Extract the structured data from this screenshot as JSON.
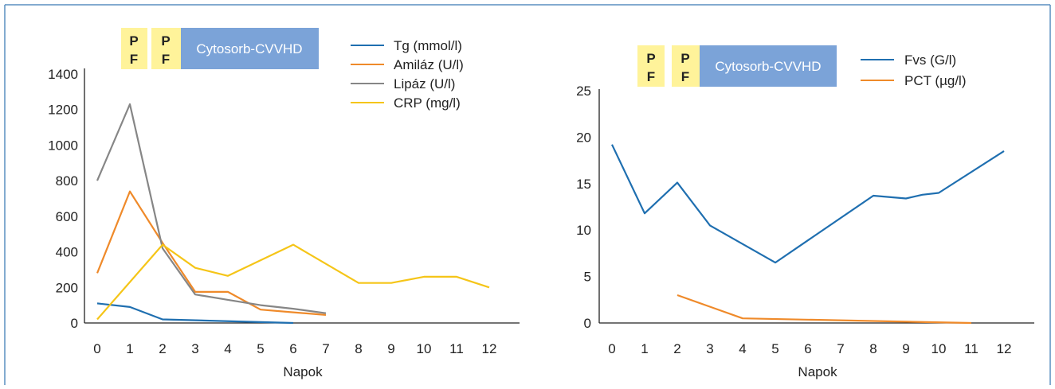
{
  "chart_data": [
    {
      "type": "line",
      "title": "",
      "xlabel": "Napok",
      "ylabel": "",
      "x_ticks": [
        "0",
        "1",
        "2",
        "3",
        "4",
        "5",
        "6",
        "7",
        "8",
        "9",
        "10",
        "11",
        "12"
      ],
      "y_ticks": [
        "0",
        "200",
        "400",
        "600",
        "800",
        "1000",
        "1200",
        "1400"
      ],
      "xlim": [
        0,
        12
      ],
      "ylim": [
        0,
        1400
      ],
      "legend_position": "top-right",
      "treatment_labels": {
        "pf1_top": "P",
        "pf1_bottom": "F",
        "pf2_top": "P",
        "pf2_bottom": "F",
        "cytosorb": "Cytosorb-CVVHD"
      },
      "series": [
        {
          "name": "Tg (mmol/l)",
          "color": "#1f6fb0",
          "x": [
            0,
            1,
            2,
            6
          ],
          "y": [
            110,
            90,
            20,
            0
          ]
        },
        {
          "name": "Amiláz (U/l)",
          "color": "#ef8a2a",
          "x": [
            0,
            1,
            2,
            3,
            4,
            5,
            6,
            7
          ],
          "y": [
            280,
            740,
            450,
            175,
            175,
            75,
            60,
            45
          ]
        },
        {
          "name": "Lipáz (U/l)",
          "color": "#868686",
          "x": [
            0,
            1,
            2,
            3,
            4,
            5,
            6,
            7
          ],
          "y": [
            800,
            1230,
            420,
            160,
            130,
            100,
            80,
            55
          ]
        },
        {
          "name": "CRP (mg/l)",
          "color": "#f5c518",
          "x": [
            0,
            2,
            3,
            4,
            6,
            8,
            9,
            10,
            11,
            12
          ],
          "y": [
            20,
            440,
            310,
            265,
            440,
            225,
            225,
            260,
            260,
            200
          ]
        }
      ]
    },
    {
      "type": "line",
      "title": "",
      "xlabel": "Napok",
      "ylabel": "",
      "x_ticks": [
        "0",
        "1",
        "2",
        "3",
        "4",
        "5",
        "6",
        "7",
        "8",
        "9",
        "10",
        "11",
        "12"
      ],
      "y_ticks": [
        "0",
        "5",
        "10",
        "15",
        "20",
        "25"
      ],
      "xlim": [
        0,
        12
      ],
      "ylim": [
        0,
        25
      ],
      "legend_position": "top-right",
      "treatment_labels": {
        "pf1_top": "P",
        "pf1_bottom": "F",
        "pf2_top": "P",
        "pf2_bottom": "F",
        "cytosorb": "Cytosorb-CVVHD"
      },
      "series": [
        {
          "name": "Fvs (G/l)",
          "color": "#1f6fb0",
          "x": [
            0,
            1,
            2,
            3,
            5,
            8,
            9,
            9.5,
            10,
            12
          ],
          "y": [
            19.2,
            11.8,
            15.1,
            10.5,
            6.5,
            13.7,
            13.4,
            13.8,
            14,
            18.5
          ]
        },
        {
          "name": "PCT (µg/l)",
          "color": "#ef8a2a",
          "x": [
            2,
            4,
            11
          ],
          "y": [
            3,
            0.5,
            0
          ]
        }
      ]
    }
  ]
}
